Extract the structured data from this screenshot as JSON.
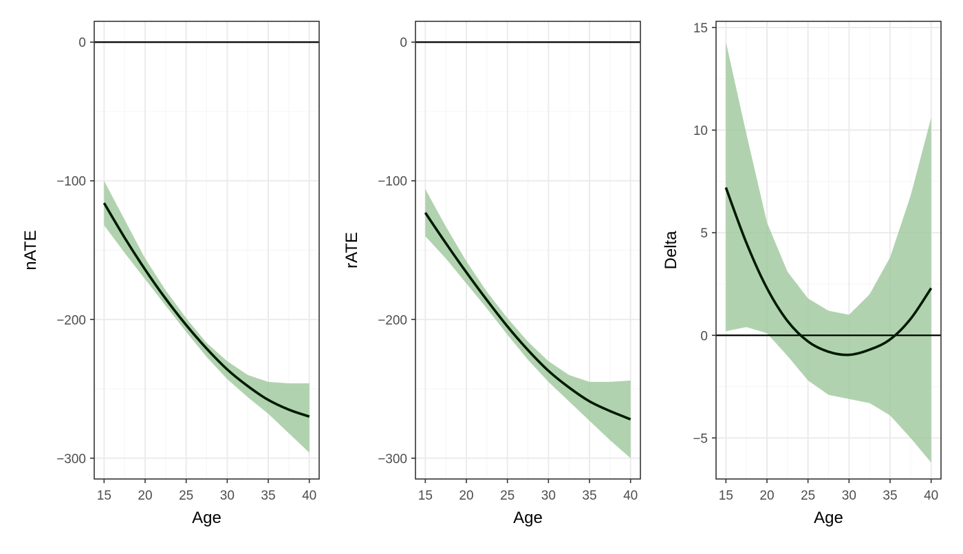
{
  "figure": {
    "background": "#ffffff",
    "ribbon_color": "#9dc79b",
    "line_color": "#001a00",
    "grid_major_color": "#ebebeb",
    "grid_minor_color": "#f4f4f4",
    "frame_color": "#333333",
    "reference_line_color": "#000000"
  },
  "chart_data": [
    {
      "type": "line",
      "title": "",
      "xlabel": "Age",
      "ylabel": "nATE",
      "xlim": [
        13.8,
        41.2
      ],
      "ylim": [
        -315,
        15
      ],
      "x_ticks": [
        15,
        20,
        25,
        30,
        35,
        40
      ],
      "y_ticks": [
        -300,
        -200,
        -100,
        0
      ],
      "y_tick_labels": [
        "−300",
        "−200",
        "−100",
        "0"
      ],
      "reference_line_y": 0,
      "grid": true,
      "legend": "none",
      "series": [
        {
          "x": [
            15,
            17.5,
            20,
            22.5,
            25,
            27.5,
            30,
            32.5,
            35,
            37.5,
            40
          ],
          "y": [
            -116,
            -141,
            -164,
            -185,
            -204,
            -221,
            -236,
            -248,
            -258,
            -265,
            -270
          ],
          "lower": [
            -132,
            -152,
            -171,
            -190,
            -209,
            -227,
            -243,
            -256,
            -268,
            -282,
            -296
          ],
          "upper": [
            -100,
            -128,
            -156,
            -179,
            -199,
            -217,
            -230,
            -240,
            -245,
            -246,
            -246
          ]
        }
      ]
    },
    {
      "type": "line",
      "title": "",
      "xlabel": "Age",
      "ylabel": "rATE",
      "xlim": [
        13.8,
        41.2
      ],
      "ylim": [
        -315,
        15
      ],
      "x_ticks": [
        15,
        20,
        25,
        30,
        35,
        40
      ],
      "y_ticks": [
        -300,
        -200,
        -100,
        0
      ],
      "y_tick_labels": [
        "−300",
        "−200",
        "−100",
        "0"
      ],
      "reference_line_y": 0,
      "grid": true,
      "legend": "none",
      "series": [
        {
          "x": [
            15,
            17.5,
            20,
            22.5,
            25,
            27.5,
            30,
            32.5,
            35,
            37.5,
            40
          ],
          "y": [
            -123,
            -145,
            -166,
            -186,
            -205,
            -222,
            -237,
            -249,
            -259,
            -266,
            -272
          ],
          "lower": [
            -140,
            -156,
            -174,
            -192,
            -211,
            -229,
            -245,
            -259,
            -273,
            -287,
            -300
          ],
          "upper": [
            -106,
            -133,
            -158,
            -180,
            -199,
            -216,
            -230,
            -240,
            -245,
            -245,
            -244
          ]
        }
      ]
    },
    {
      "type": "line",
      "title": "",
      "xlabel": "Age",
      "ylabel": "Delta",
      "xlim": [
        13.8,
        41.2
      ],
      "ylim": [
        -7,
        15.3
      ],
      "x_ticks": [
        15,
        20,
        25,
        30,
        35,
        40
      ],
      "y_ticks": [
        -5,
        0,
        5,
        10,
        15
      ],
      "y_tick_labels": [
        "−5",
        "0",
        "5",
        "10",
        "15"
      ],
      "reference_line_y": 0,
      "grid": true,
      "legend": "none",
      "series": [
        {
          "x": [
            15,
            17.5,
            20,
            22.5,
            25,
            27.5,
            30,
            32.5,
            35,
            37.5,
            40
          ],
          "y": [
            7.2,
            4.5,
            2.3,
            0.7,
            -0.3,
            -0.8,
            -0.95,
            -0.7,
            -0.2,
            0.8,
            2.3
          ],
          "lower": [
            0.2,
            0.4,
            0.1,
            -1.0,
            -2.2,
            -2.9,
            -3.1,
            -3.3,
            -3.9,
            -5.0,
            -6.2
          ],
          "upper": [
            14.3,
            9.8,
            5.5,
            3.1,
            1.8,
            1.2,
            1.0,
            2.0,
            3.8,
            6.8,
            10.6
          ]
        }
      ]
    }
  ]
}
